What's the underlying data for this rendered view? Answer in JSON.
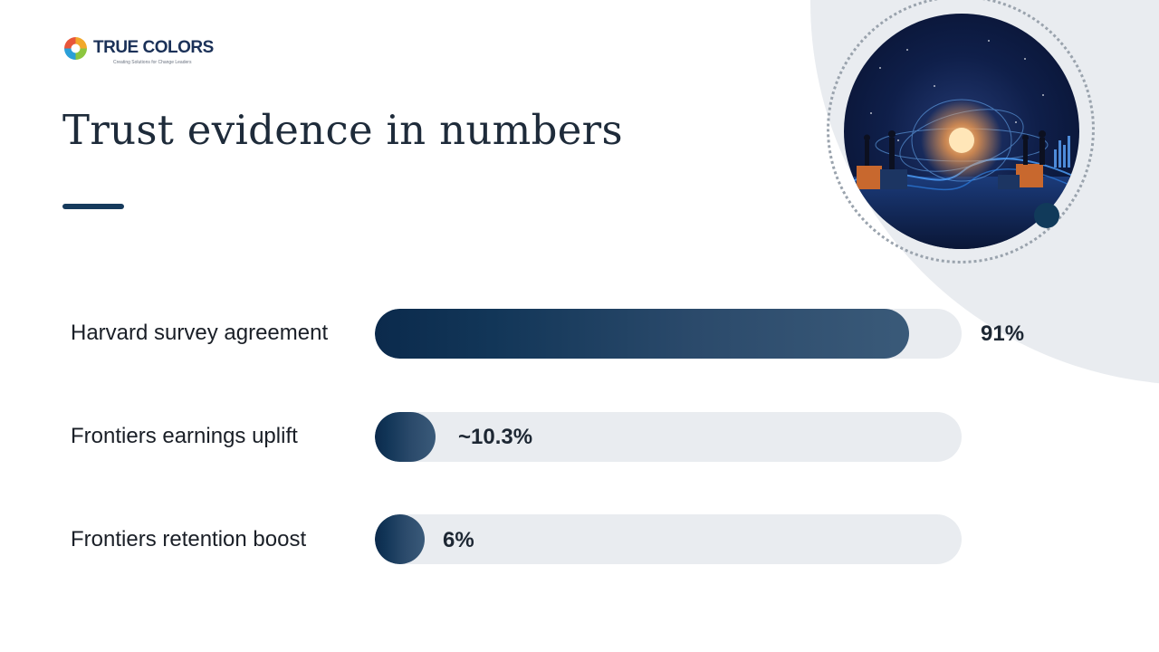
{
  "logo": {
    "name": "TRUE COLORS",
    "tagline": "Creating Solutions for Change Leaders"
  },
  "title": "Trust evidence in numbers",
  "colors": {
    "accent": "#163a5c",
    "track": "#e9ecf0",
    "bar_start": "#0b2a4c",
    "bar_end": "#3a5a79"
  },
  "chart_data": {
    "type": "bar",
    "orientation": "horizontal",
    "categories": [
      "Harvard survey agreement",
      "Frontiers earnings uplift",
      "Frontiers retention boost"
    ],
    "values": [
      91,
      10.3,
      6
    ],
    "value_labels": [
      "91%",
      "~10.3%",
      "6%"
    ],
    "xlim": [
      0,
      100
    ]
  },
  "hero_image": {
    "icon": "analytics-network-illustration"
  }
}
